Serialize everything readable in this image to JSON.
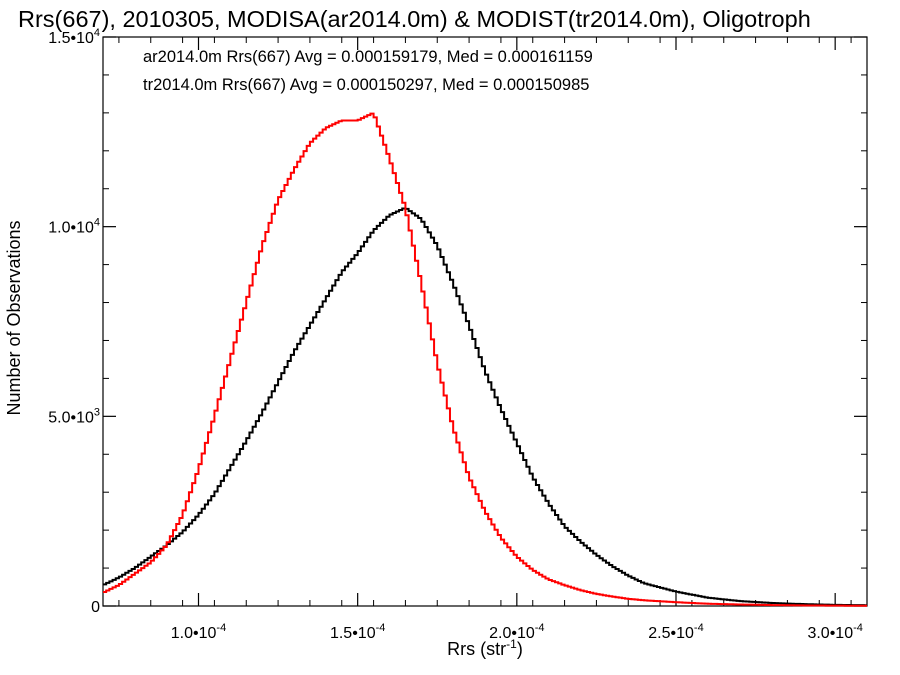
{
  "chart_data": {
    "type": "line",
    "style": "step histogram",
    "title": "Rrs(667), 2010305, MODISA(ar2014.0m) & MODIST(tr2014.0m), Oligotroph",
    "xlabel": "Rrs (str",
    "xlabel_sup": "-1",
    "xlabel_close": ")",
    "ylabel": "Number of Observations",
    "xlim": [
      7e-05,
      0.00031
    ],
    "ylim": [
      0,
      15000
    ],
    "grid": false,
    "x_ticks": [
      {
        "value": 0.0001,
        "mant": "1.0•10",
        "exp": "-4"
      },
      {
        "value": 0.00015,
        "mant": "1.5•10",
        "exp": "-4"
      },
      {
        "value": 0.0002,
        "mant": "2.0•10",
        "exp": "-4"
      },
      {
        "value": 0.00025,
        "mant": "2.5•10",
        "exp": "-4"
      },
      {
        "value": 0.0003,
        "mant": "3.0•10",
        "exp": "-4"
      }
    ],
    "y_ticks": [
      {
        "value": 0,
        "mant": "0",
        "exp": ""
      },
      {
        "value": 5000,
        "mant": "5.0•10",
        "exp": "3"
      },
      {
        "value": 10000,
        "mant": "1.0•10",
        "exp": "4"
      },
      {
        "value": 15000,
        "mant": "1.5•10",
        "exp": "4"
      }
    ],
    "annotations": [
      {
        "text": "ar2014.0m Rrs(667) Avg = 0.000159179, Med = 0.000161159",
        "color": "#000000"
      },
      {
        "text": "tr2014.0m Rrs(667) Avg = 0.000150297, Med = 0.000150985",
        "color": "#ff0000"
      }
    ],
    "series": [
      {
        "color": "#000000",
        "x": [
          7e-05,
          7.5e-05,
          8e-05,
          8.5e-05,
          9e-05,
          9.5e-05,
          0.0001,
          0.000105,
          0.00011,
          0.000115,
          0.00012,
          0.000125,
          0.00013,
          0.000135,
          0.00014,
          0.000145,
          0.00015,
          0.000155,
          0.00016,
          0.000165,
          0.00017,
          0.000175,
          0.00018,
          0.000185,
          0.00019,
          0.000195,
          0.0002,
          0.000205,
          0.00021,
          0.000215,
          0.00022,
          0.000225,
          0.00023,
          0.000235,
          0.00024,
          0.00025,
          0.00026,
          0.00027,
          0.00028,
          0.00029,
          0.0003,
          0.00031
        ],
        "y": [
          550,
          750,
          1000,
          1300,
          1600,
          1950,
          2400,
          2950,
          3650,
          4350,
          5100,
          5900,
          6700,
          7400,
          8100,
          8800,
          9300,
          9900,
          10300,
          10500,
          10200,
          9500,
          8500,
          7400,
          6200,
          5200,
          4300,
          3400,
          2700,
          2100,
          1700,
          1350,
          1050,
          800,
          600,
          380,
          220,
          130,
          80,
          50,
          30,
          20
        ]
      },
      {
        "color": "#ff0000",
        "x": [
          7e-05,
          7.5e-05,
          8e-05,
          8.5e-05,
          9e-05,
          9.5e-05,
          0.0001,
          0.000105,
          0.00011,
          0.000115,
          0.00012,
          0.000125,
          0.00013,
          0.000135,
          0.00014,
          0.000145,
          0.00015,
          0.000155,
          0.00016,
          0.000165,
          0.00017,
          0.000175,
          0.00018,
          0.000185,
          0.00019,
          0.000195,
          0.0002,
          0.000205,
          0.00021,
          0.000215,
          0.00022,
          0.000225,
          0.00023,
          0.000235,
          0.00024,
          0.00025,
          0.00026,
          0.00027,
          0.00028,
          0.00029,
          0.0003,
          0.00031
        ],
        "y": [
          350,
          550,
          850,
          1150,
          1600,
          2400,
          3600,
          5000,
          6500,
          8000,
          9500,
          10700,
          11500,
          12200,
          12600,
          12800,
          12800,
          13000,
          11800,
          10500,
          8500,
          6400,
          4700,
          3400,
          2500,
          1800,
          1300,
          950,
          700,
          550,
          420,
          320,
          250,
          190,
          150,
          100,
          60,
          40,
          25,
          15,
          10,
          5
        ]
      }
    ]
  }
}
